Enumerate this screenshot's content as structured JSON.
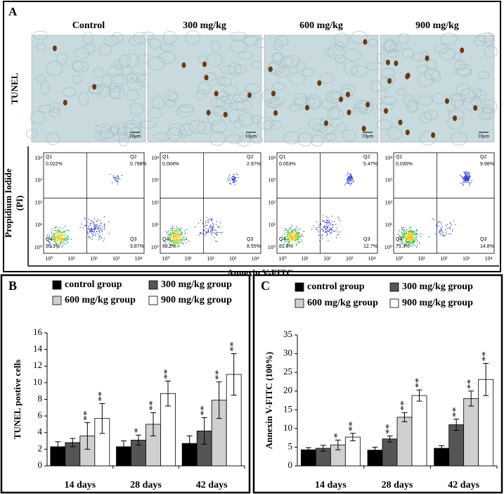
{
  "panel_a": {
    "label": "A",
    "columns": [
      "Control",
      "300 mg/kg",
      "600 mg/kg",
      "900 mg/kg"
    ],
    "row_label": "TUNEL",
    "scale_bar": "10μm",
    "flow": {
      "y_label": [
        "Propidium Iodide",
        "(PI)"
      ],
      "x_label": "Annexin V-FITC",
      "ticks": [
        "10⁰",
        "10¹",
        "10²",
        "10³",
        "10⁴"
      ],
      "quadrant_names": [
        "Q1",
        "Q2",
        "Q3",
        "Q4"
      ],
      "plots": [
        [
          "0.022%",
          "0.798%",
          "3.87%",
          "95.3%"
        ],
        [
          "0.004%",
          "2.97%",
          "8.55%",
          "88.5%"
        ],
        [
          "0.053%",
          "5.47%",
          "12.7%",
          "81.8%"
        ],
        [
          "0.030%",
          "9.98%",
          "14.8%",
          "75.3%"
        ]
      ]
    }
  },
  "chart_data": [
    {
      "type": "bar",
      "panel": "B",
      "y_label": "TUNEL postive cells",
      "categories": [
        "14 days",
        "28 days",
        "42 days"
      ],
      "ylim": [
        0,
        16
      ],
      "yticks": [
        0,
        2,
        4,
        6,
        8,
        10,
        12,
        14,
        16
      ],
      "series": [
        {
          "name": "control group",
          "color": "#000000",
          "values": [
            2.3,
            2.3,
            2.7
          ],
          "errors": [
            0.6,
            0.7,
            0.9
          ],
          "annotations": [
            null,
            null,
            null
          ]
        },
        {
          "name": "300 mg/kg group",
          "color": "#555555",
          "values": [
            2.8,
            3.1,
            4.2
          ],
          "errors": [
            0.5,
            0.6,
            1.6
          ],
          "annotations": [
            null,
            "*",
            "**"
          ]
        },
        {
          "name": "600 mg/kg group",
          "color": "#d0d0d0",
          "values": [
            3.6,
            5.0,
            7.9
          ],
          "errors": [
            1.6,
            1.4,
            2.2
          ],
          "annotations": [
            "**",
            "**",
            "**"
          ]
        },
        {
          "name": "900 mg/kg group",
          "color": "#ffffff",
          "values": [
            5.7,
            8.7,
            11.0
          ],
          "errors": [
            1.8,
            1.5,
            2.5
          ],
          "annotations": [
            "**",
            "**",
            "**"
          ]
        }
      ]
    },
    {
      "type": "bar",
      "panel": "C",
      "y_label": "Annexin V-FITC (100%)",
      "categories": [
        "14 days",
        "28 days",
        "42 days"
      ],
      "ylim": [
        0,
        35
      ],
      "yticks": [
        0,
        5,
        10,
        15,
        20,
        25,
        30,
        35
      ],
      "series": [
        {
          "name": "control group",
          "color": "#000000",
          "values": [
            4.3,
            4.2,
            4.7
          ],
          "errors": [
            0.6,
            0.8,
            0.7
          ],
          "annotations": [
            null,
            null,
            null
          ]
        },
        {
          "name": "300 mg/kg group",
          "color": "#555555",
          "values": [
            4.7,
            7.2,
            11.0
          ],
          "errors": [
            0.8,
            0.8,
            1.5
          ],
          "annotations": [
            null,
            "**",
            "**"
          ]
        },
        {
          "name": "600 mg/kg group",
          "color": "#d0d0d0",
          "values": [
            5.6,
            13.0,
            18.0
          ],
          "errors": [
            1.3,
            1.2,
            2.0
          ],
          "annotations": [
            "*",
            "**",
            "**"
          ]
        },
        {
          "name": "900 mg/kg group",
          "color": "#ffffff",
          "values": [
            7.7,
            18.8,
            23.1
          ],
          "errors": [
            1.0,
            1.5,
            4.3
          ],
          "annotations": [
            "**",
            "**",
            "**"
          ]
        }
      ]
    }
  ]
}
